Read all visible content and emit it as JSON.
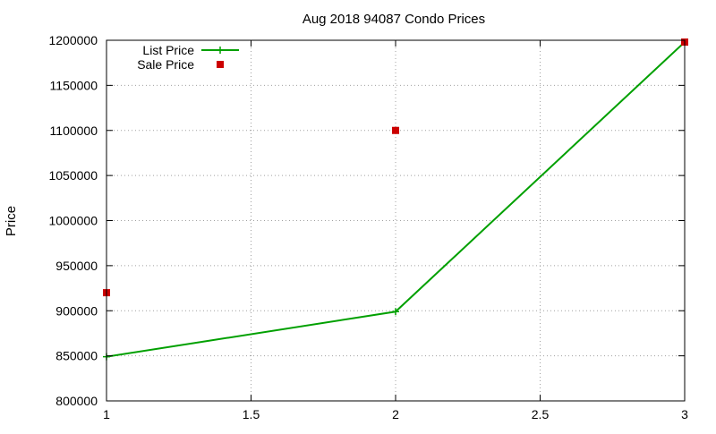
{
  "chart_data": {
    "type": "line",
    "title": "Aug 2018 94087 Condo Prices",
    "xlabel": "",
    "ylabel": "Price",
    "xlim": [
      1,
      3
    ],
    "ylim": [
      800000,
      1200000
    ],
    "x_ticks": [
      1,
      1.5,
      2,
      2.5,
      3
    ],
    "x_tick_labels": [
      "1",
      "1.5",
      "2",
      "2.5",
      "3"
    ],
    "y_ticks": [
      800000,
      850000,
      900000,
      950000,
      1000000,
      1050000,
      1100000,
      1150000,
      1200000
    ],
    "y_tick_labels": [
      "800000",
      "850000",
      "900000",
      "950000",
      "1000000",
      "1050000",
      "1100000",
      "1150000",
      "1200000"
    ],
    "grid": true,
    "legend_position": "top-left",
    "series": [
      {
        "name": "List Price",
        "style": "line-with-plus-markers",
        "color": "#00a000",
        "x": [
          1,
          2,
          3
        ],
        "y": [
          849000,
          899000,
          1198000
        ]
      },
      {
        "name": "Sale Price",
        "style": "square-markers",
        "color": "#cc0000",
        "x": [
          1,
          2,
          3
        ],
        "y": [
          920000,
          1100000,
          1198000
        ]
      }
    ]
  }
}
